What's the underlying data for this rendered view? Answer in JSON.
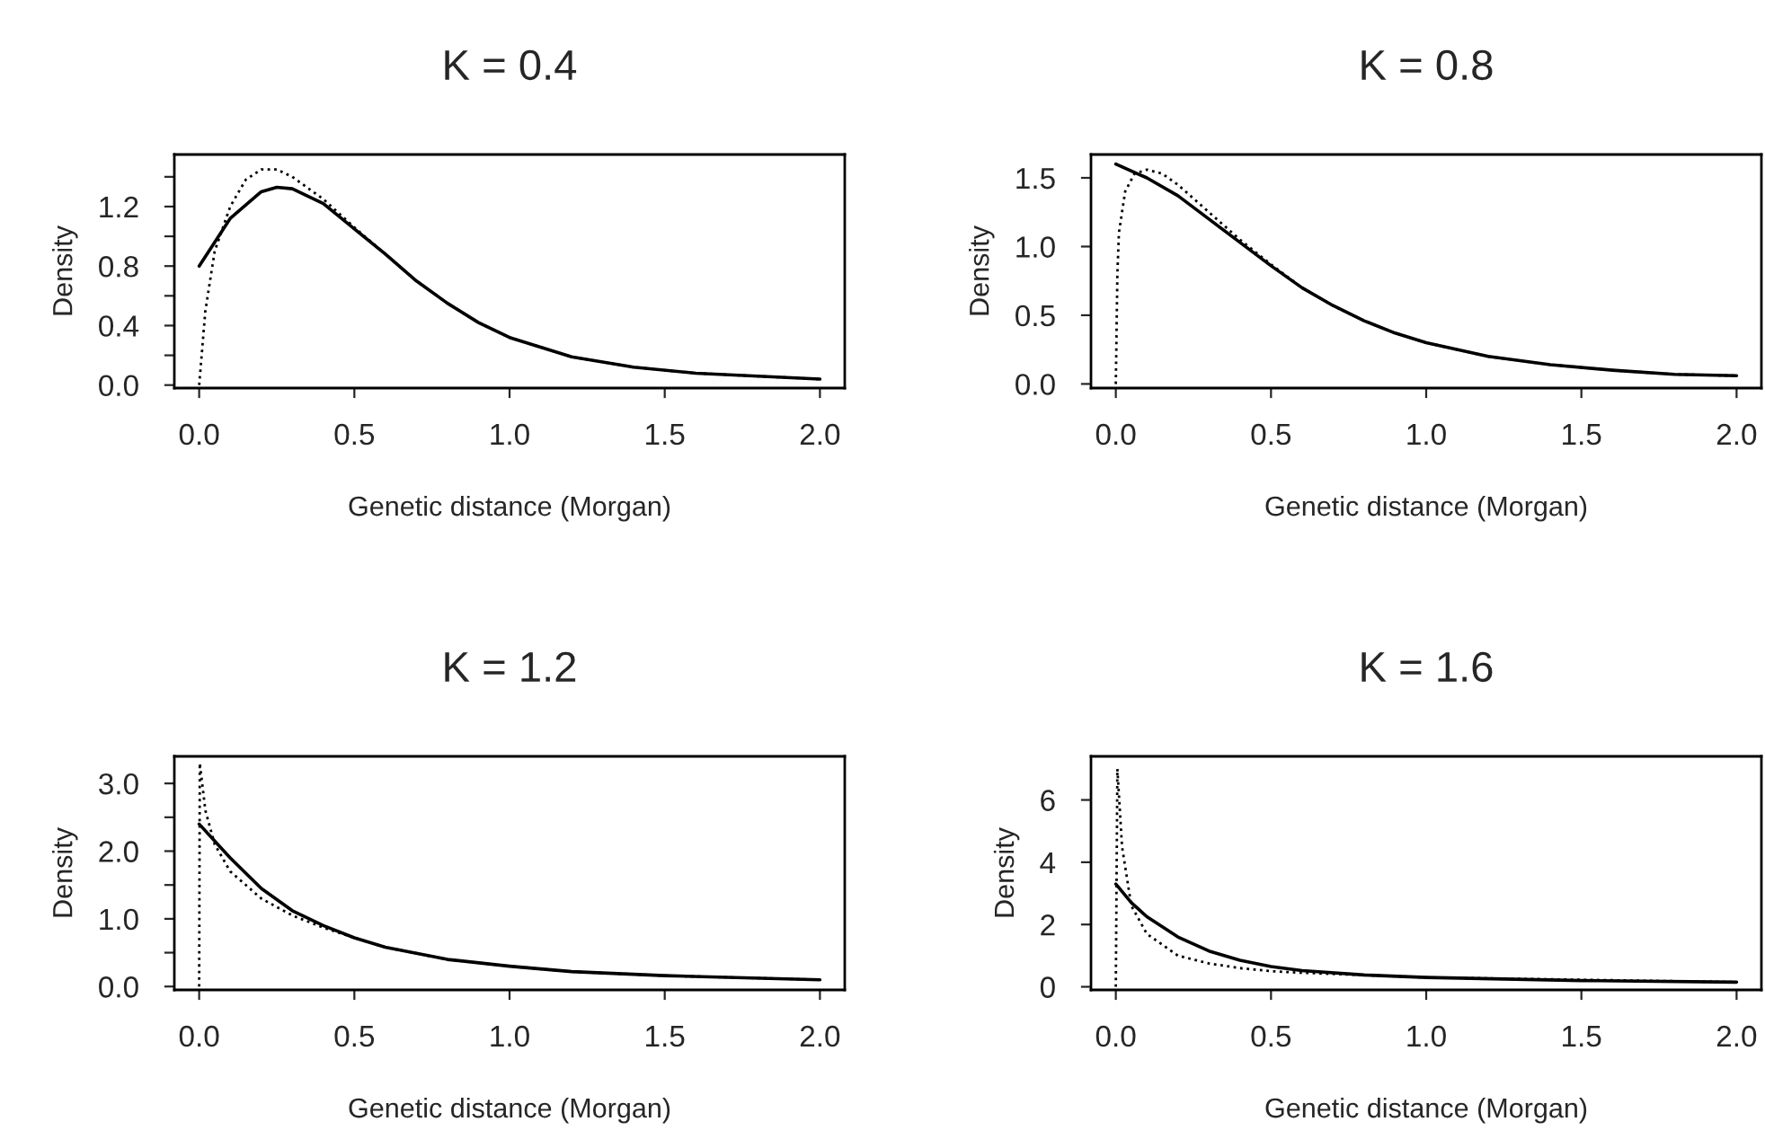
{
  "chart_data": [
    {
      "type": "line",
      "title": "K = 0.4",
      "xlabel": "Genetic distance (Morgan)",
      "ylabel": "Density",
      "xlim": [
        -0.08,
        2.08
      ],
      "ylim": [
        -0.02,
        1.55
      ],
      "xticks": [
        {
          "value": 0,
          "label": "0.0"
        },
        {
          "value": 0.5,
          "label": "0.5"
        },
        {
          "value": 1,
          "label": "1.0"
        },
        {
          "value": 1.5,
          "label": "1.5"
        },
        {
          "value": 2,
          "label": "2.0"
        }
      ],
      "yticks": [
        {
          "value": 0,
          "label": "0.0"
        },
        {
          "value": 0.2,
          "label": null
        },
        {
          "value": 0.4,
          "label": "0.4"
        },
        {
          "value": 0.6,
          "label": null
        },
        {
          "value": 0.8,
          "label": "0.8"
        },
        {
          "value": 1.0,
          "label": null
        },
        {
          "value": 1.2,
          "label": "1.2"
        },
        {
          "value": 1.4,
          "label": null
        }
      ],
      "grid": false,
      "legend": false,
      "series": [
        {
          "color": "#000000",
          "line_style": "solid",
          "x": [
            0,
            0.1,
            0.2,
            0.25,
            0.3,
            0.4,
            0.5,
            0.6,
            0.7,
            0.8,
            0.9,
            1.0,
            1.2,
            1.4,
            1.6,
            1.8,
            2.0
          ],
          "values": [
            0.8,
            1.12,
            1.3,
            1.33,
            1.32,
            1.22,
            1.05,
            0.88,
            0.7,
            0.55,
            0.42,
            0.32,
            0.19,
            0.12,
            0.08,
            0.06,
            0.04
          ]
        },
        {
          "color": "#000000",
          "line_style": "dotted",
          "x": [
            0,
            0.02,
            0.05,
            0.1,
            0.15,
            0.2,
            0.25,
            0.3,
            0.4,
            0.5,
            0.6,
            0.7,
            0.8,
            0.9,
            1.0,
            1.2,
            1.4,
            1.6,
            1.8,
            2.0
          ],
          "values": [
            0,
            0.5,
            0.9,
            1.2,
            1.38,
            1.45,
            1.45,
            1.4,
            1.25,
            1.06,
            0.88,
            0.7,
            0.55,
            0.42,
            0.32,
            0.19,
            0.12,
            0.08,
            0.06,
            0.04
          ]
        }
      ]
    },
    {
      "type": "line",
      "title": "K = 0.8",
      "xlabel": "Genetic distance (Morgan)",
      "ylabel": "Density",
      "xlim": [
        -0.08,
        2.08
      ],
      "ylim": [
        -0.03,
        1.67
      ],
      "xticks": [
        {
          "value": 0,
          "label": "0.0"
        },
        {
          "value": 0.5,
          "label": "0.5"
        },
        {
          "value": 1,
          "label": "1.0"
        },
        {
          "value": 1.5,
          "label": "1.5"
        },
        {
          "value": 2,
          "label": "2.0"
        }
      ],
      "yticks": [
        {
          "value": 0,
          "label": "0.0"
        },
        {
          "value": 0.5,
          "label": "0.5"
        },
        {
          "value": 1,
          "label": "1.0"
        },
        {
          "value": 1.5,
          "label": "1.5"
        }
      ],
      "grid": false,
      "legend": false,
      "series": [
        {
          "color": "#000000",
          "line_style": "solid",
          "x": [
            0,
            0.1,
            0.2,
            0.3,
            0.4,
            0.5,
            0.6,
            0.7,
            0.8,
            0.9,
            1.0,
            1.2,
            1.4,
            1.6,
            1.8,
            2.0
          ],
          "values": [
            1.6,
            1.5,
            1.37,
            1.2,
            1.03,
            0.86,
            0.7,
            0.57,
            0.46,
            0.37,
            0.3,
            0.2,
            0.14,
            0.1,
            0.07,
            0.06
          ]
        },
        {
          "color": "#000000",
          "line_style": "dotted",
          "x": [
            0,
            0.005,
            0.01,
            0.03,
            0.06,
            0.1,
            0.15,
            0.2,
            0.3,
            0.4,
            0.5,
            0.6,
            0.7,
            0.8,
            0.9,
            1.0,
            1.2,
            1.4,
            1.6,
            1.8,
            2.0
          ],
          "values": [
            0,
            0.8,
            1.1,
            1.4,
            1.53,
            1.56,
            1.53,
            1.45,
            1.25,
            1.05,
            0.87,
            0.7,
            0.57,
            0.46,
            0.37,
            0.3,
            0.2,
            0.14,
            0.1,
            0.07,
            0.06
          ]
        }
      ]
    },
    {
      "type": "line",
      "title": "K = 1.2",
      "xlabel": "Genetic distance (Morgan)",
      "ylabel": "Density",
      "xlim": [
        -0.08,
        2.08
      ],
      "ylim": [
        -0.05,
        3.4
      ],
      "xticks": [
        {
          "value": 0,
          "label": "0.0"
        },
        {
          "value": 0.5,
          "label": "0.5"
        },
        {
          "value": 1,
          "label": "1.0"
        },
        {
          "value": 1.5,
          "label": "1.5"
        },
        {
          "value": 2,
          "label": "2.0"
        }
      ],
      "yticks": [
        {
          "value": 0,
          "label": "0.0"
        },
        {
          "value": 0.5,
          "label": null
        },
        {
          "value": 1,
          "label": "1.0"
        },
        {
          "value": 1.5,
          "label": null
        },
        {
          "value": 2,
          "label": "2.0"
        },
        {
          "value": 2.5,
          "label": null
        },
        {
          "value": 3,
          "label": "3.0"
        }
      ],
      "grid": false,
      "legend": false,
      "series": [
        {
          "color": "#000000",
          "line_style": "solid",
          "x": [
            0,
            0.05,
            0.1,
            0.2,
            0.3,
            0.4,
            0.5,
            0.6,
            0.8,
            1.0,
            1.2,
            1.5,
            2.0
          ],
          "values": [
            2.4,
            2.15,
            1.9,
            1.45,
            1.12,
            0.9,
            0.72,
            0.58,
            0.4,
            0.3,
            0.22,
            0.16,
            0.1
          ]
        },
        {
          "color": "#000000",
          "line_style": "dotted",
          "x": [
            0,
            0.002,
            0.02,
            0.05,
            0.1,
            0.2,
            0.3,
            0.4,
            0.5,
            0.6,
            0.8,
            1.0,
            1.2,
            1.5,
            2.0
          ],
          "values": [
            0,
            3.3,
            2.6,
            2.1,
            1.7,
            1.3,
            1.05,
            0.87,
            0.72,
            0.58,
            0.4,
            0.3,
            0.22,
            0.16,
            0.1
          ]
        }
      ]
    },
    {
      "type": "line",
      "title": "K = 1.6",
      "xlabel": "Genetic distance (Morgan)",
      "ylabel": "Density",
      "xlim": [
        -0.08,
        2.08
      ],
      "ylim": [
        -0.1,
        7.4
      ],
      "xticks": [
        {
          "value": 0,
          "label": "0.0"
        },
        {
          "value": 0.5,
          "label": "0.5"
        },
        {
          "value": 1,
          "label": "1.0"
        },
        {
          "value": 1.5,
          "label": "1.5"
        },
        {
          "value": 2,
          "label": "2.0"
        }
      ],
      "yticks": [
        0,
        2,
        4,
        6
      ],
      "grid": false,
      "legend": false,
      "series": [
        {
          "color": "#000000",
          "line_style": "solid",
          "x": [
            0,
            0.05,
            0.1,
            0.2,
            0.3,
            0.4,
            0.5,
            0.6,
            0.8,
            1.0,
            1.5,
            2.0
          ],
          "values": [
            3.3,
            2.7,
            2.25,
            1.6,
            1.15,
            0.85,
            0.65,
            0.52,
            0.38,
            0.3,
            0.2,
            0.15
          ]
        },
        {
          "color": "#000000",
          "line_style": "dotted",
          "x": [
            0,
            0.005,
            0.02,
            0.05,
            0.1,
            0.2,
            0.3,
            0.4,
            0.5,
            0.6,
            1.0,
            2.0
          ],
          "values": [
            0,
            7.0,
            4.5,
            2.6,
            1.7,
            1.0,
            0.75,
            0.6,
            0.5,
            0.45,
            0.3,
            0.15
          ]
        }
      ]
    }
  ]
}
